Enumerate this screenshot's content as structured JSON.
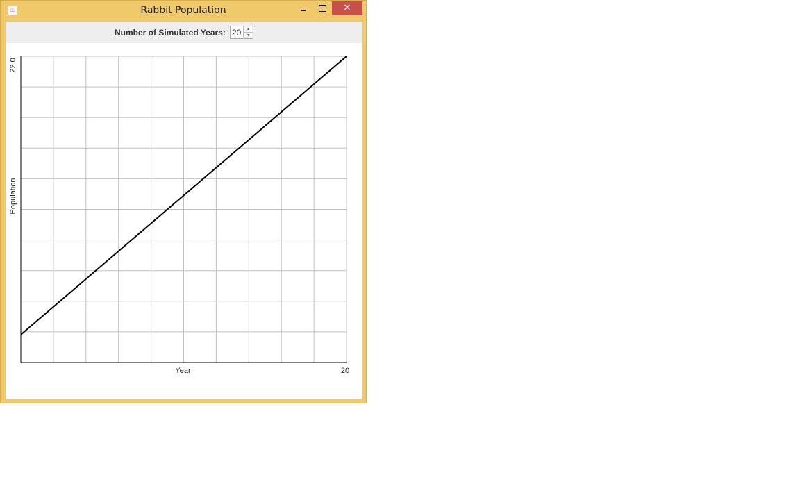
{
  "window": {
    "title": "Rabbit Population",
    "close_glyph": "✕",
    "app_icon": "java-icon"
  },
  "controls": {
    "years_label": "Number of Simulated Years:",
    "years_value": "20"
  },
  "chart_data": {
    "type": "line",
    "xlabel": "Year",
    "ylabel": "Population",
    "x_tick_labels": [
      "20"
    ],
    "y_tick_labels": [
      "22.0"
    ],
    "xlim": [
      0,
      20
    ],
    "ylim": [
      0,
      22
    ],
    "grid": true,
    "x_gridlines": 10,
    "y_gridlines": 10,
    "series": [
      {
        "color": "#000000",
        "x": [
          0,
          20
        ],
        "y": [
          2,
          22
        ]
      }
    ]
  }
}
